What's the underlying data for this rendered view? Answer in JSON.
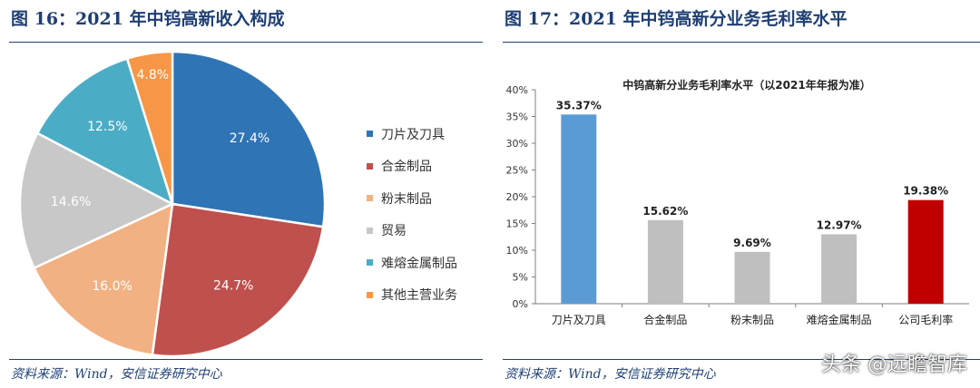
{
  "figure16": {
    "title": "图 16：2021 年中钨高新收入构成",
    "source": "资料来源：Wind，安信证券研究中心",
    "chart_data": {
      "type": "pie",
      "slices": [
        {
          "name": "刀片及刀具",
          "value": 27.4,
          "label": "27.4%",
          "color": "#2f74b5"
        },
        {
          "name": "合金制品",
          "value": 24.7,
          "label": "24.7%",
          "color": "#c0504d"
        },
        {
          "name": "粉末制品",
          "value": 16.0,
          "label": "16.0%",
          "color": "#f2b183"
        },
        {
          "name": "贸易",
          "value": 14.6,
          "label": "14.6%",
          "color": "#c8c8c8"
        },
        {
          "name": "难熔金属制品",
          "value": 12.5,
          "label": "12.5%",
          "color": "#4bacc6"
        },
        {
          "name": "其他主营业务",
          "value": 4.8,
          "label": "4.8%",
          "color": "#f79646"
        }
      ],
      "legend_position": "right"
    }
  },
  "figure17": {
    "title": "图 17：2021 年中钨高新分业务毛利率水平",
    "source": "资料来源：Wind，安信证券研究中心",
    "chart_data": {
      "type": "bar",
      "title": "中钨高新分业务毛利率水平（以2021年年报为准）",
      "categories": [
        "刀片及刀具",
        "合金制品",
        "粉末制品",
        "难熔金属制品",
        "公司毛利率"
      ],
      "values": [
        35.37,
        15.62,
        9.69,
        12.97,
        19.38
      ],
      "value_labels": [
        "35.37%",
        "15.62%",
        "9.69%",
        "12.97%",
        "19.38%"
      ],
      "bar_colors": [
        "#5b9bd5",
        "#bfbfbf",
        "#bfbfbf",
        "#bfbfbf",
        "#c00000"
      ],
      "ylim": [
        0,
        40
      ],
      "yticks": [
        "0%",
        "5%",
        "10%",
        "15%",
        "20%",
        "25%",
        "30%",
        "35%",
        "40%"
      ],
      "grid": false
    }
  },
  "watermark": "头条 @远瞻智库"
}
